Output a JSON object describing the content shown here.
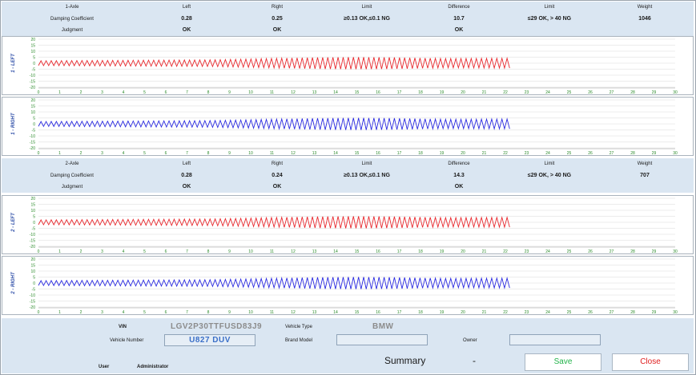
{
  "axles": [
    {
      "header": {
        "axle_label": "1-Axle",
        "col_left": "Left",
        "col_right": "Right",
        "col_limit": "Limit",
        "col_difference": "Difference",
        "col_limit2": "Limit",
        "col_weight": "Weight",
        "row_damping": "Damping Coefficient",
        "row_judgment": "Judgment",
        "damping_left": "0.28",
        "damping_right": "0.25",
        "limit": "≥0.13 OK,≤0.1 NG",
        "difference": "10.7",
        "limit2": "≤29 OK, > 40 NG",
        "weight": "1046",
        "judgment_left": "OK",
        "judgment_right": "OK",
        "judgment_difference": "OK"
      },
      "charts": [
        {
          "label": "1 - LEFT",
          "color": "#e8292e"
        },
        {
          "label": "1 - RIGHT",
          "color": "#2a2ae0"
        }
      ]
    },
    {
      "header": {
        "axle_label": "2-Axle",
        "col_left": "Left",
        "col_right": "Right",
        "col_limit": "Limit",
        "col_difference": "Difference",
        "col_limit2": "Limit",
        "col_weight": "Weight",
        "row_damping": "Damping Coefficient",
        "row_judgment": "Judgment",
        "damping_left": "0.28",
        "damping_right": "0.24",
        "limit": "≥0.13 OK,≤0.1 NG",
        "difference": "14.3",
        "limit2": "≤29 OK, > 40 NG",
        "weight": "707",
        "judgment_left": "OK",
        "judgment_right": "OK",
        "judgment_difference": "OK"
      },
      "charts": [
        {
          "label": "2 - LEFT",
          "color": "#e8292e"
        },
        {
          "label": "2 - RIGHT",
          "color": "#2a2ae0"
        }
      ]
    }
  ],
  "chart_data": {
    "type": "line",
    "x_ticks": [
      "0",
      "1",
      "2",
      "3",
      "4",
      "5",
      "6",
      "7",
      "8",
      "9",
      "10",
      "11",
      "12",
      "13",
      "14",
      "15",
      "16",
      "17",
      "18",
      "19",
      "20",
      "21",
      "22",
      "23",
      "24",
      "25",
      "26",
      "27",
      "28",
      "29",
      "30"
    ],
    "y_ticks": [
      "20",
      "15",
      "10",
      "5",
      "0",
      "-5",
      "-10",
      "-15",
      "-20"
    ],
    "xlim": [
      0,
      30
    ],
    "ylim": [
      -20,
      20
    ],
    "signal_end": 22.2,
    "amplitude_start": 2,
    "amplitude_peak": 5,
    "peak_x": 15
  },
  "footer": {
    "vin_label": "VIN",
    "vin_value": "LGV2P30TTFUSD83J9",
    "vehicle_type_label": "Vehicle Type",
    "vehicle_type_value": "BMW",
    "vehicle_number_label": "Vehicle Number",
    "vehicle_number_value": "U827 DUV",
    "brand_model_label": "Brand Model",
    "owner_label": "Owner",
    "user_label": "User",
    "user_value": "Administrator",
    "summary_label": "Summary",
    "summary_value": "-",
    "save_label": "Save",
    "close_label": "Close"
  }
}
